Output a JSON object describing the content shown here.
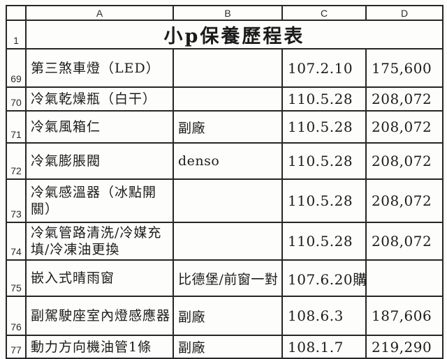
{
  "sheet": {
    "corner_label": "",
    "column_headers": [
      "A",
      "B",
      "C",
      "D"
    ],
    "title_row": {
      "num": "1",
      "title": "小p保養歷程表"
    },
    "rows": [
      {
        "num": "69",
        "item": "第三煞車燈（LED）",
        "vendor": "",
        "date": "107.2.10",
        "mileage": "175,600"
      },
      {
        "num": "70",
        "item": "冷氣乾燥瓶（白干）",
        "vendor": "",
        "date": "110.5.28",
        "mileage": "208,072"
      },
      {
        "num": "71",
        "item": "冷氣風箱仁",
        "vendor": "副廠",
        "date": "110.5.28",
        "mileage": "208,072"
      },
      {
        "num": "72",
        "item": "冷氣膨脹閥",
        "vendor": "denso",
        "date": "110.5.28",
        "mileage": "208,072"
      },
      {
        "num": "73",
        "item": "冷氣感溫器（冰點開關）",
        "vendor": "",
        "date": "110.5.28",
        "mileage": "208,072"
      },
      {
        "num": "74",
        "item": "冷氣管路清洗/冷媒充填/冷凍油更換",
        "vendor": "",
        "date": "110.5.28",
        "mileage": "208,072"
      },
      {
        "num": "75",
        "item": "嵌入式晴雨窗",
        "vendor": "比德堡/前窗一對",
        "date": "107.6.20購",
        "mileage": ""
      },
      {
        "num": "76",
        "item": "副駕駛座室內燈感應器",
        "vendor": "副廠",
        "date": "108.6.3",
        "mileage": "187,606"
      },
      {
        "num": "77",
        "item": "動力方向機油管1條",
        "vendor": "副廠",
        "date": "108.1.7",
        "mileage": "219,290"
      }
    ]
  },
  "colors": {
    "paper": "#fcfcfa",
    "grid_line": "#262626",
    "text": "#1b1b1b"
  }
}
